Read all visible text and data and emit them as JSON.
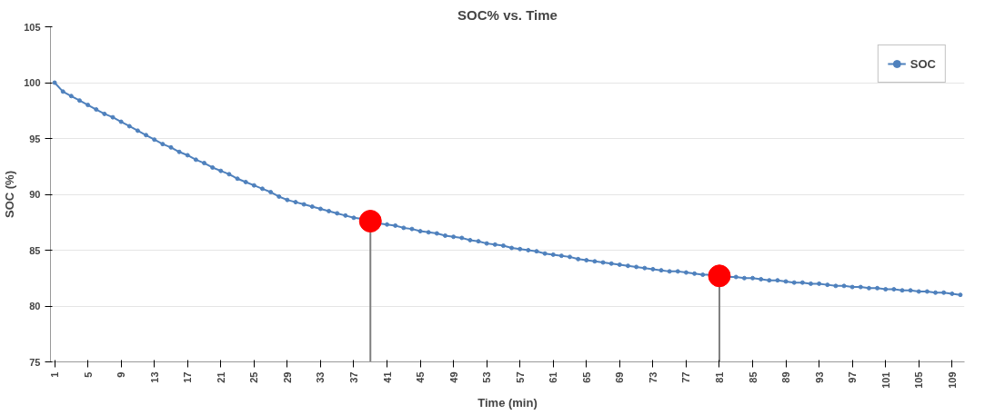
{
  "chart_data": {
    "type": "line",
    "title": "SOC% vs. Time",
    "xlabel": "Time (min)",
    "ylabel": "SOC (%)",
    "xlim": [
      0.5,
      110.5
    ],
    "xticks": [
      1,
      5,
      9,
      13,
      17,
      21,
      25,
      29,
      33,
      37,
      41,
      45,
      49,
      53,
      57,
      61,
      65,
      69,
      73,
      77,
      81,
      85,
      89,
      93,
      97,
      101,
      105,
      109
    ],
    "ylim": [
      75,
      105
    ],
    "yticks": [
      75,
      80,
      85,
      90,
      95,
      100,
      105
    ],
    "grid": "y",
    "legend": "top right",
    "marker": "circle",
    "series": [
      {
        "name": "SOC",
        "color": "#4f81bd",
        "x": [
          1,
          2,
          3,
          4,
          5,
          6,
          7,
          8,
          9,
          10,
          11,
          12,
          13,
          14,
          15,
          16,
          17,
          18,
          19,
          20,
          21,
          22,
          23,
          24,
          25,
          26,
          27,
          28,
          29,
          30,
          31,
          32,
          33,
          34,
          35,
          36,
          37,
          38,
          39,
          40,
          41,
          42,
          43,
          44,
          45,
          46,
          47,
          48,
          49,
          50,
          51,
          52,
          53,
          54,
          55,
          56,
          57,
          58,
          59,
          60,
          61,
          62,
          63,
          64,
          65,
          66,
          67,
          68,
          69,
          70,
          71,
          72,
          73,
          74,
          75,
          76,
          77,
          78,
          79,
          80,
          81,
          82,
          83,
          84,
          85,
          86,
          87,
          88,
          89,
          90,
          91,
          92,
          93,
          94,
          95,
          96,
          97,
          98,
          99,
          100,
          101,
          102,
          103,
          104,
          105,
          106,
          107,
          108,
          109,
          110
        ],
        "values": [
          100.0,
          99.2,
          98.8,
          98.4,
          98.0,
          97.6,
          97.2,
          96.9,
          96.5,
          96.1,
          95.7,
          95.3,
          94.9,
          94.5,
          94.2,
          93.8,
          93.5,
          93.1,
          92.8,
          92.4,
          92.1,
          91.8,
          91.4,
          91.1,
          90.8,
          90.5,
          90.2,
          89.8,
          89.5,
          89.3,
          89.1,
          88.9,
          88.7,
          88.5,
          88.3,
          88.1,
          87.9,
          87.8,
          null,
          87.4,
          87.3,
          87.2,
          87.0,
          86.9,
          86.7,
          86.6,
          86.5,
          86.3,
          86.2,
          86.1,
          85.9,
          85.8,
          85.6,
          85.5,
          85.4,
          85.2,
          85.1,
          85.0,
          84.9,
          84.7,
          84.6,
          84.5,
          84.4,
          84.2,
          84.1,
          84.0,
          83.9,
          83.8,
          83.7,
          83.6,
          83.5,
          83.4,
          83.3,
          83.2,
          83.1,
          83.1,
          83.0,
          82.9,
          82.8,
          82.8,
          null,
          82.6,
          82.6,
          82.5,
          82.5,
          82.4,
          82.3,
          82.3,
          82.2,
          82.1,
          82.1,
          82.0,
          82.0,
          81.9,
          81.8,
          81.8,
          81.7,
          81.7,
          81.6,
          81.6,
          81.5,
          81.5,
          81.4,
          81.4,
          81.3,
          81.3,
          81.2,
          81.2,
          81.1,
          81.0
        ]
      },
      {
        "type": "lollipop",
        "color": "#ff0000",
        "x": [
          39,
          81
        ],
        "values": [
          87.6,
          82.7
        ]
      }
    ]
  }
}
